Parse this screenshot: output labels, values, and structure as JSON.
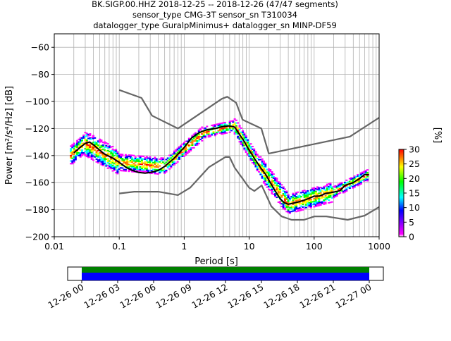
{
  "title_lines": [
    "BK.SIGP.00.HHZ   2018-12-25 -- 2018-12-26  (47/47 segments)",
    "sensor_type CMG-3T sensor_sn T310034",
    "datalogger_type GuralpMinimus+ datalogger_sn MINP-DF59"
  ],
  "chart_data": {
    "type": "line",
    "xlabel": "Period [s]",
    "ylabel": "Power [$m^2/s^4/Hz$] [dB]",
    "ylabel_display": "Power [m²/s⁴/Hz] [dB]",
    "x_scale": "log",
    "xlim": [
      0.01,
      1000
    ],
    "ylim": [
      -200,
      -50
    ],
    "x_ticks": [
      0.01,
      0.1,
      1,
      10,
      100,
      1000
    ],
    "x_tick_labels": [
      "0.01",
      "0.1",
      "1",
      "10",
      "100",
      "1000"
    ],
    "y_ticks": [
      -200,
      -180,
      -160,
      -140,
      -120,
      -100,
      -80,
      -60
    ],
    "y_tick_labels": [
      "−200",
      "−180",
      "−160",
      "−140",
      "−120",
      "−100",
      "−80",
      "−60"
    ],
    "grid": true,
    "series": [
      {
        "id": "nhnm",
        "color": "#666666",
        "x": [
          0.1,
          0.22,
          0.32,
          0.8,
          3.8,
          4.6,
          6.3,
          7.9,
          15.4,
          20,
          354.8,
          1000
        ],
        "y": [
          -91.5,
          -97.4,
          -110.5,
          -120,
          -98,
          -96.5,
          -101,
          -113.5,
          -120,
          -138.5,
          -126,
          -112
        ]
      },
      {
        "id": "nlnm",
        "color": "#666666",
        "x": [
          0.1,
          0.17,
          0.4,
          0.8,
          1.24,
          2.4,
          4.3,
          5,
          6,
          10,
          12,
          15.6,
          21.9,
          31.6,
          45,
          70,
          101,
          154,
          328,
          600,
          1000
        ],
        "y": [
          -168,
          -166.7,
          -166.7,
          -169.2,
          -163.7,
          -148.6,
          -141.1,
          -141.1,
          -149,
          -163.8,
          -166.2,
          -162.1,
          -177.5,
          -185,
          -187.5,
          -187.5,
          -185,
          -185,
          -187.5,
          -184.4,
          -178
        ]
      },
      {
        "id": "mode",
        "color": "#000000",
        "x": [
          0.02,
          0.025,
          0.03,
          0.035,
          0.04,
          0.05,
          0.06,
          0.08,
          0.1,
          0.13,
          0.16,
          0.2,
          0.25,
          0.3,
          0.4,
          0.5,
          0.7,
          1,
          1.3,
          1.7,
          2.2,
          3,
          4,
          5,
          6,
          7,
          8,
          10,
          12,
          15,
          18,
          20,
          25,
          30,
          35,
          40,
          50,
          60,
          70,
          80,
          100,
          120,
          150,
          200,
          250,
          300,
          400,
          500,
          600,
          700
        ],
        "y": [
          -138,
          -134,
          -131,
          -130,
          -132,
          -136,
          -139,
          -142,
          -145,
          -149,
          -151,
          -152.5,
          -153,
          -152.5,
          -151,
          -148,
          -142,
          -134,
          -127,
          -123,
          -121,
          -120,
          -118.5,
          -118,
          -119,
          -124,
          -128,
          -136,
          -142,
          -149,
          -154,
          -158,
          -166,
          -172,
          -175,
          -176,
          -175,
          -174,
          -173,
          -172,
          -170,
          -170,
          -168,
          -167,
          -166,
          -162,
          -160,
          -157,
          -154,
          -154
        ]
      }
    ],
    "colorbar": {
      "label": "[%]",
      "range": [
        0,
        30
      ],
      "ticks": [
        0,
        5,
        10,
        15,
        20,
        25,
        30
      ],
      "tick_labels": [
        "0",
        "5",
        "10",
        "15",
        "20",
        "25",
        "30"
      ],
      "colormap": [
        "#ffffff",
        "#ff00ff",
        "#0000ff",
        "#00ffff",
        "#00ff00",
        "#ffff00",
        "#ff8000",
        "#ff0000"
      ]
    },
    "histogram_bands": [
      {
        "x": [
          0.018,
          0.03
        ],
        "center": [
          -140,
          -131
        ],
        "spread": 7
      },
      {
        "x": [
          0.03,
          0.1
        ],
        "center": [
          -131,
          -145
        ],
        "spread": 9
      },
      {
        "x": [
          0.1,
          0.5
        ],
        "center": [
          -145,
          -148
        ],
        "spread": 6
      },
      {
        "x": [
          0.5,
          2
        ],
        "center": [
          -148,
          -123
        ],
        "spread": 5
      },
      {
        "x": [
          2,
          6
        ],
        "center": [
          -123,
          -118
        ],
        "spread": 4
      },
      {
        "x": [
          6,
          15
        ],
        "center": [
          -118,
          -149
        ],
        "spread": 6
      },
      {
        "x": [
          15,
          40
        ],
        "center": [
          -149,
          -176
        ],
        "spread": 8
      },
      {
        "x": [
          40,
          200
        ],
        "center": [
          -176,
          -167
        ],
        "spread": 7
      },
      {
        "x": [
          200,
          700
        ],
        "center": [
          -167,
          -154
        ],
        "spread": 4
      }
    ]
  },
  "timeline": {
    "tick_labels": [
      "12-26 00",
      "12-26 03",
      "12-26 06",
      "12-26 09",
      "12-26 12",
      "12-26 15",
      "12-26 18",
      "12-26 21",
      "12-27 00"
    ],
    "colors": {
      "top": "#008000",
      "bottom": "#0000ff"
    }
  }
}
